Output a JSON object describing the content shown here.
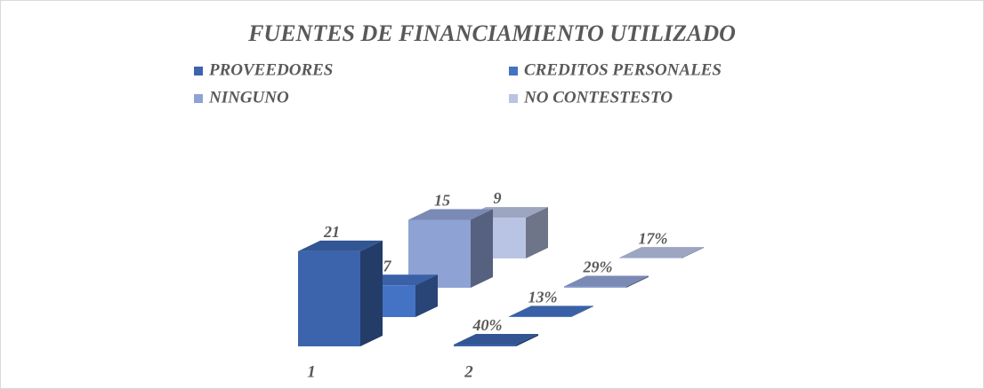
{
  "chart_data": {
    "type": "bar3d",
    "title": "FUENTES DE FINANCIAMIENTO UTILIZADO",
    "categories": [
      "1",
      "2"
    ],
    "series": [
      {
        "name": "PROVEEDORES",
        "color": "#3b64ad",
        "values": [
          21,
          0.4
        ],
        "value_labels": [
          "21",
          "40%"
        ]
      },
      {
        "name": "CREDITOS PERSONALES",
        "color": "#4472c4",
        "values": [
          7,
          0.13
        ],
        "value_labels": [
          "7",
          "13%"
        ]
      },
      {
        "name": "NINGUNO",
        "color": "#8fa2d4",
        "values": [
          15,
          0.29
        ],
        "value_labels": [
          "15",
          "29%"
        ]
      },
      {
        "name": "NO CONTESTESTO",
        "color": "#b9c3e3",
        "values": [
          9,
          0.17
        ],
        "value_labels": [
          "9",
          "17%"
        ]
      }
    ]
  }
}
